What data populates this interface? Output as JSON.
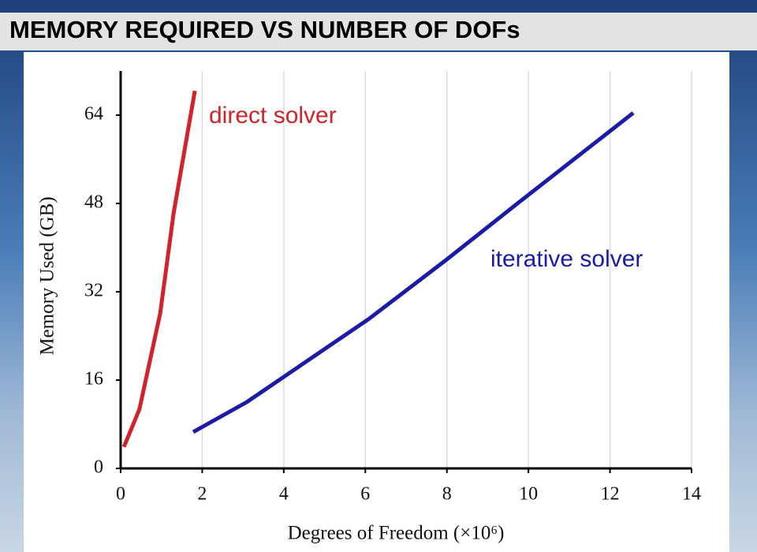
{
  "title": "MEMORY REQUIRED VS NUMBER OF DOFs",
  "chart_data": {
    "type": "line",
    "xlabel": "Degrees of Freedom (×10⁶)",
    "ylabel": "Memory Used (GB)",
    "xlim": [
      0,
      14
    ],
    "ylim": [
      0,
      72
    ],
    "xticks": [
      0,
      2,
      4,
      6,
      8,
      10,
      12,
      14
    ],
    "yticks": [
      0,
      16,
      32,
      48,
      64
    ],
    "grid": "x",
    "series": [
      {
        "name": "direct solver",
        "color": "#d2232a",
        "x": [
          0.08,
          0.46,
          0.97,
          1.3,
          1.82
        ],
        "values": [
          3.9,
          10.7,
          28.1,
          46.3,
          68.4
        ]
      },
      {
        "name": "iterative solver",
        "color": "#1b1ba8",
        "x": [
          1.78,
          3.09,
          6.09,
          7.97,
          9.8,
          12.57
        ],
        "values": [
          6.6,
          12,
          27.1,
          37.7,
          48.4,
          64.4
        ]
      }
    ]
  }
}
